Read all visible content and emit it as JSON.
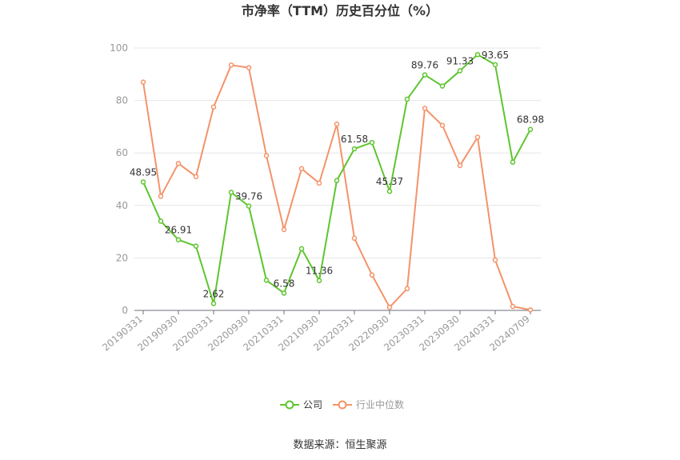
{
  "chart_data": {
    "type": "line",
    "title": "市净率（TTM）历史百分位（%）",
    "ylim": [
      0,
      100
    ],
    "yticks": [
      0,
      20,
      40,
      60,
      80,
      100
    ],
    "grid": true,
    "legend_position": "bottom",
    "categories": [
      "20190331",
      "20190630",
      "20190930",
      "20191231",
      "20200331",
      "20200630",
      "20200930",
      "20201231",
      "20210331",
      "20210630",
      "20210930",
      "20211231",
      "20220331",
      "20220630",
      "20220930",
      "20221231",
      "20230331",
      "20230630",
      "20230930",
      "20231231",
      "20240331",
      "20240630",
      "20240709"
    ],
    "xtick_labels": [
      "20190331",
      "20190930",
      "20200331",
      "20200930",
      "20210331",
      "20210930",
      "20220331",
      "20220930",
      "20230331",
      "20230930",
      "20240331",
      "20240709"
    ],
    "series": [
      {
        "name": "公司",
        "color": "#5ec52f",
        "values": [
          48.95,
          34.0,
          26.91,
          24.5,
          2.62,
          45.0,
          39.76,
          11.5,
          6.58,
          23.5,
          11.36,
          49.5,
          61.58,
          64.0,
          45.37,
          80.5,
          89.76,
          85.5,
          91.33,
          97.5,
          93.65,
          56.5,
          68.98
        ],
        "labels": {
          "0": "48.95",
          "2": "26.91",
          "4": "2.62",
          "6": "39.76",
          "8": "6.58",
          "10": "11.36",
          "12": "61.58",
          "14": "45.37",
          "16": "89.76",
          "18": "91.33",
          "20": "93.65",
          "22": "68.98"
        }
      },
      {
        "name": "行业中位数",
        "color": "#f4936a",
        "values": [
          87.0,
          43.5,
          56.0,
          51.0,
          77.5,
          93.5,
          92.5,
          59.0,
          30.8,
          54.0,
          48.5,
          71.0,
          27.5,
          13.5,
          1.2,
          8.3,
          77.0,
          70.5,
          55.2,
          66.0,
          19.2,
          1.5,
          0.2
        ],
        "labels": {}
      }
    ]
  },
  "source_text": "数据来源：恒生聚源"
}
